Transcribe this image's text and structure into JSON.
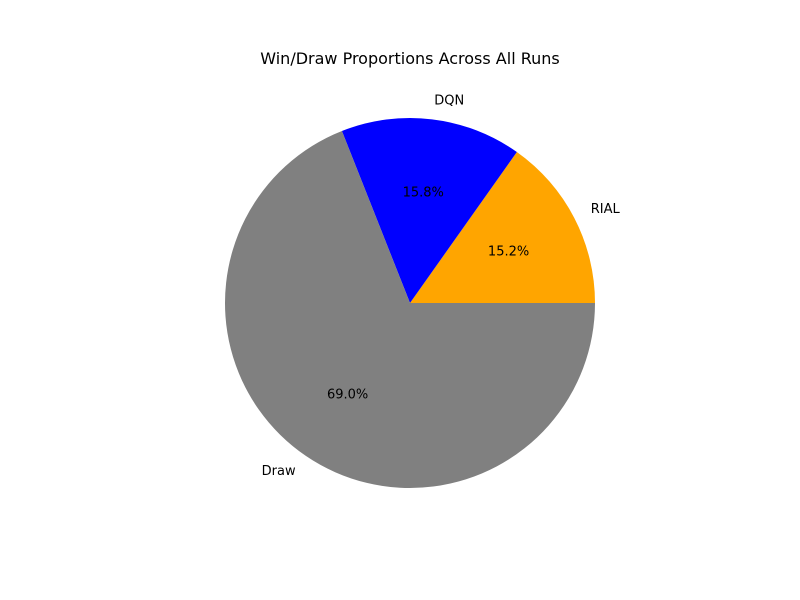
{
  "chart_data": {
    "type": "pie",
    "title": "Win/Draw Proportions Across All Runs",
    "slices": [
      {
        "label": "RIAL",
        "value": 15.2,
        "pct_text": "15.2%",
        "color": "#FFA500"
      },
      {
        "label": "DQN",
        "value": 15.8,
        "pct_text": "15.8%",
        "color": "#0000FF"
      },
      {
        "label": "Draw",
        "value": 69.0,
        "pct_text": "69.0%",
        "color": "#808080"
      }
    ],
    "start_angle_deg": 0,
    "direction": "counterclockwise"
  }
}
